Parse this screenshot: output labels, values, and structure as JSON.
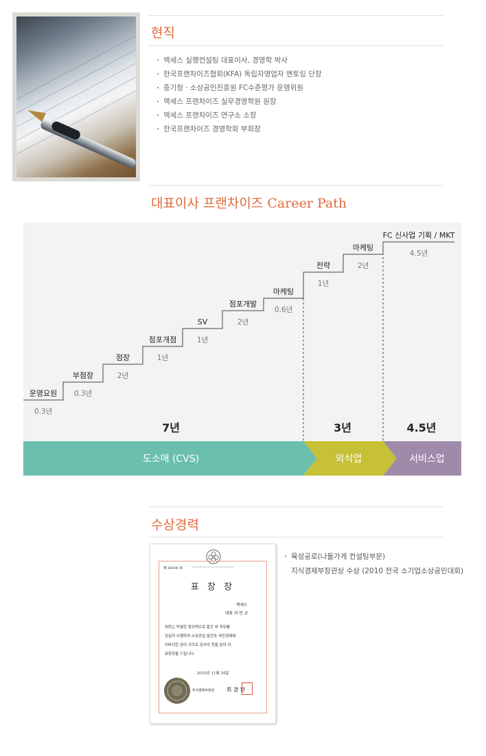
{
  "current": {
    "title": "현직",
    "items": [
      "맥세스 실행컨설팅 대표이사, 경영학 박사",
      "한국프랜차이즈협회(KFA) 독립자영업자 멘토링 단장",
      "중기청 · 소상공인진흥원 FC수준평가 운영위원",
      "맥세스 프랜차이즈 실무경영학원 원장",
      "맥세스 프랜차이즈 연구소 소장",
      "한국프랜차이즈 경영학회 부회장"
    ]
  },
  "career": {
    "title": "대표이사 프랜차이즈 Career Path",
    "colors": {
      "cvs": "#6cbfae",
      "food": "#c6c136",
      "service": "#a08aaa"
    },
    "chart_data": {
      "type": "step",
      "title": "",
      "steps": [
        {
          "position": "운영요원",
          "duration": "0.3년",
          "years": 0.3
        },
        {
          "position": "부점장",
          "duration": "0.3년",
          "years": 0.3
        },
        {
          "position": "점장",
          "duration": "2년",
          "years": 2
        },
        {
          "position": "점포개점",
          "duration": "1년",
          "years": 1
        },
        {
          "position": "SV",
          "duration": "1년",
          "years": 1
        },
        {
          "position": "점포개발",
          "duration": "2년",
          "years": 2
        },
        {
          "position": "마케팅",
          "duration": "0.6년",
          "years": 0.6
        },
        {
          "position": "전략",
          "duration": "1년",
          "years": 1
        },
        {
          "position": "마케팅",
          "duration": "2년",
          "years": 2
        },
        {
          "position": "FC 신사업 기획 / MKT",
          "duration": "4.5년",
          "years": 4.5
        }
      ],
      "sectors": [
        {
          "name": "도소매 (CVS)",
          "total": "7년"
        },
        {
          "name": "외식업",
          "total": "3년"
        },
        {
          "name": "서비스업",
          "total": "4.5년"
        }
      ]
    }
  },
  "awards": {
    "title": "수상경력",
    "line1": "육성공로(나들가게 컨설팅부문)",
    "line2": "지식경제부장관상 수상 (2010 전국 소기업소상공인대회)",
    "certificate": {
      "number": "제 86008 호",
      "header": "MINISTRY OF KNOWLEDGE ECONOMY",
      "title": "표 창 장",
      "org": "맥세스",
      "name": "대표 서 민 교",
      "body1": "위하는 탁월한 창의력으로 맡은 바 직무를",
      "body2": "성실히 수행하여 소상공업 발전과 국민경제에",
      "body3": "이바지한 공이 크므로 감사의 뜻을 담아 이",
      "body4": "표창장을 드립니다.",
      "date": "2010년  11월  24일",
      "signer": "지식경제부장관",
      "signer_name": "최 경 환"
    }
  }
}
